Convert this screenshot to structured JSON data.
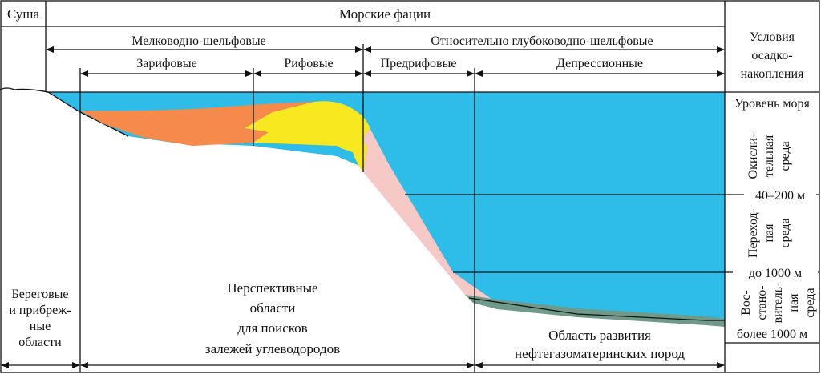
{
  "header": {
    "land": "Суша",
    "marine_facies": "Морские фации",
    "conditions": [
      "Условия",
      "осадко-",
      "накопления"
    ]
  },
  "facies_groups": {
    "shallow_shelf": "Мелководно-шельфовые",
    "deep_shelf": "Относительно глубоководно-шельфовые"
  },
  "facies": {
    "prereef_zone": "Зарифовые",
    "reef": "Рифовые",
    "forereef": "Предрифовые",
    "depression": "Депрессионные"
  },
  "environments": {
    "sea_level": "Уровень моря",
    "oxidizing": [
      "Окисли-",
      "тельная",
      "среда"
    ],
    "depth_1": "40–200 м",
    "transitional": [
      "Переход-",
      "ная",
      "среда"
    ],
    "depth_2": "до 1000 м",
    "reducing": [
      "Вос-",
      "стано-",
      "витель-",
      "ная",
      "среда"
    ],
    "depth_3": "более 1000 м"
  },
  "bottom": {
    "coastal": [
      "Береговые",
      "и прибреж-",
      "ные",
      "области"
    ],
    "prospective": [
      "Перспективные",
      "области",
      "для поисков",
      "залежей углеводородов"
    ],
    "source_rocks": [
      "Область развития",
      "нефтегазоматеринских пород"
    ]
  },
  "colors": {
    "sea": "#2ebde8",
    "orange": "#f58a4a",
    "yellow": "#f7e820",
    "pink": "#f6c9c6",
    "gray": "#6f9a8a"
  }
}
